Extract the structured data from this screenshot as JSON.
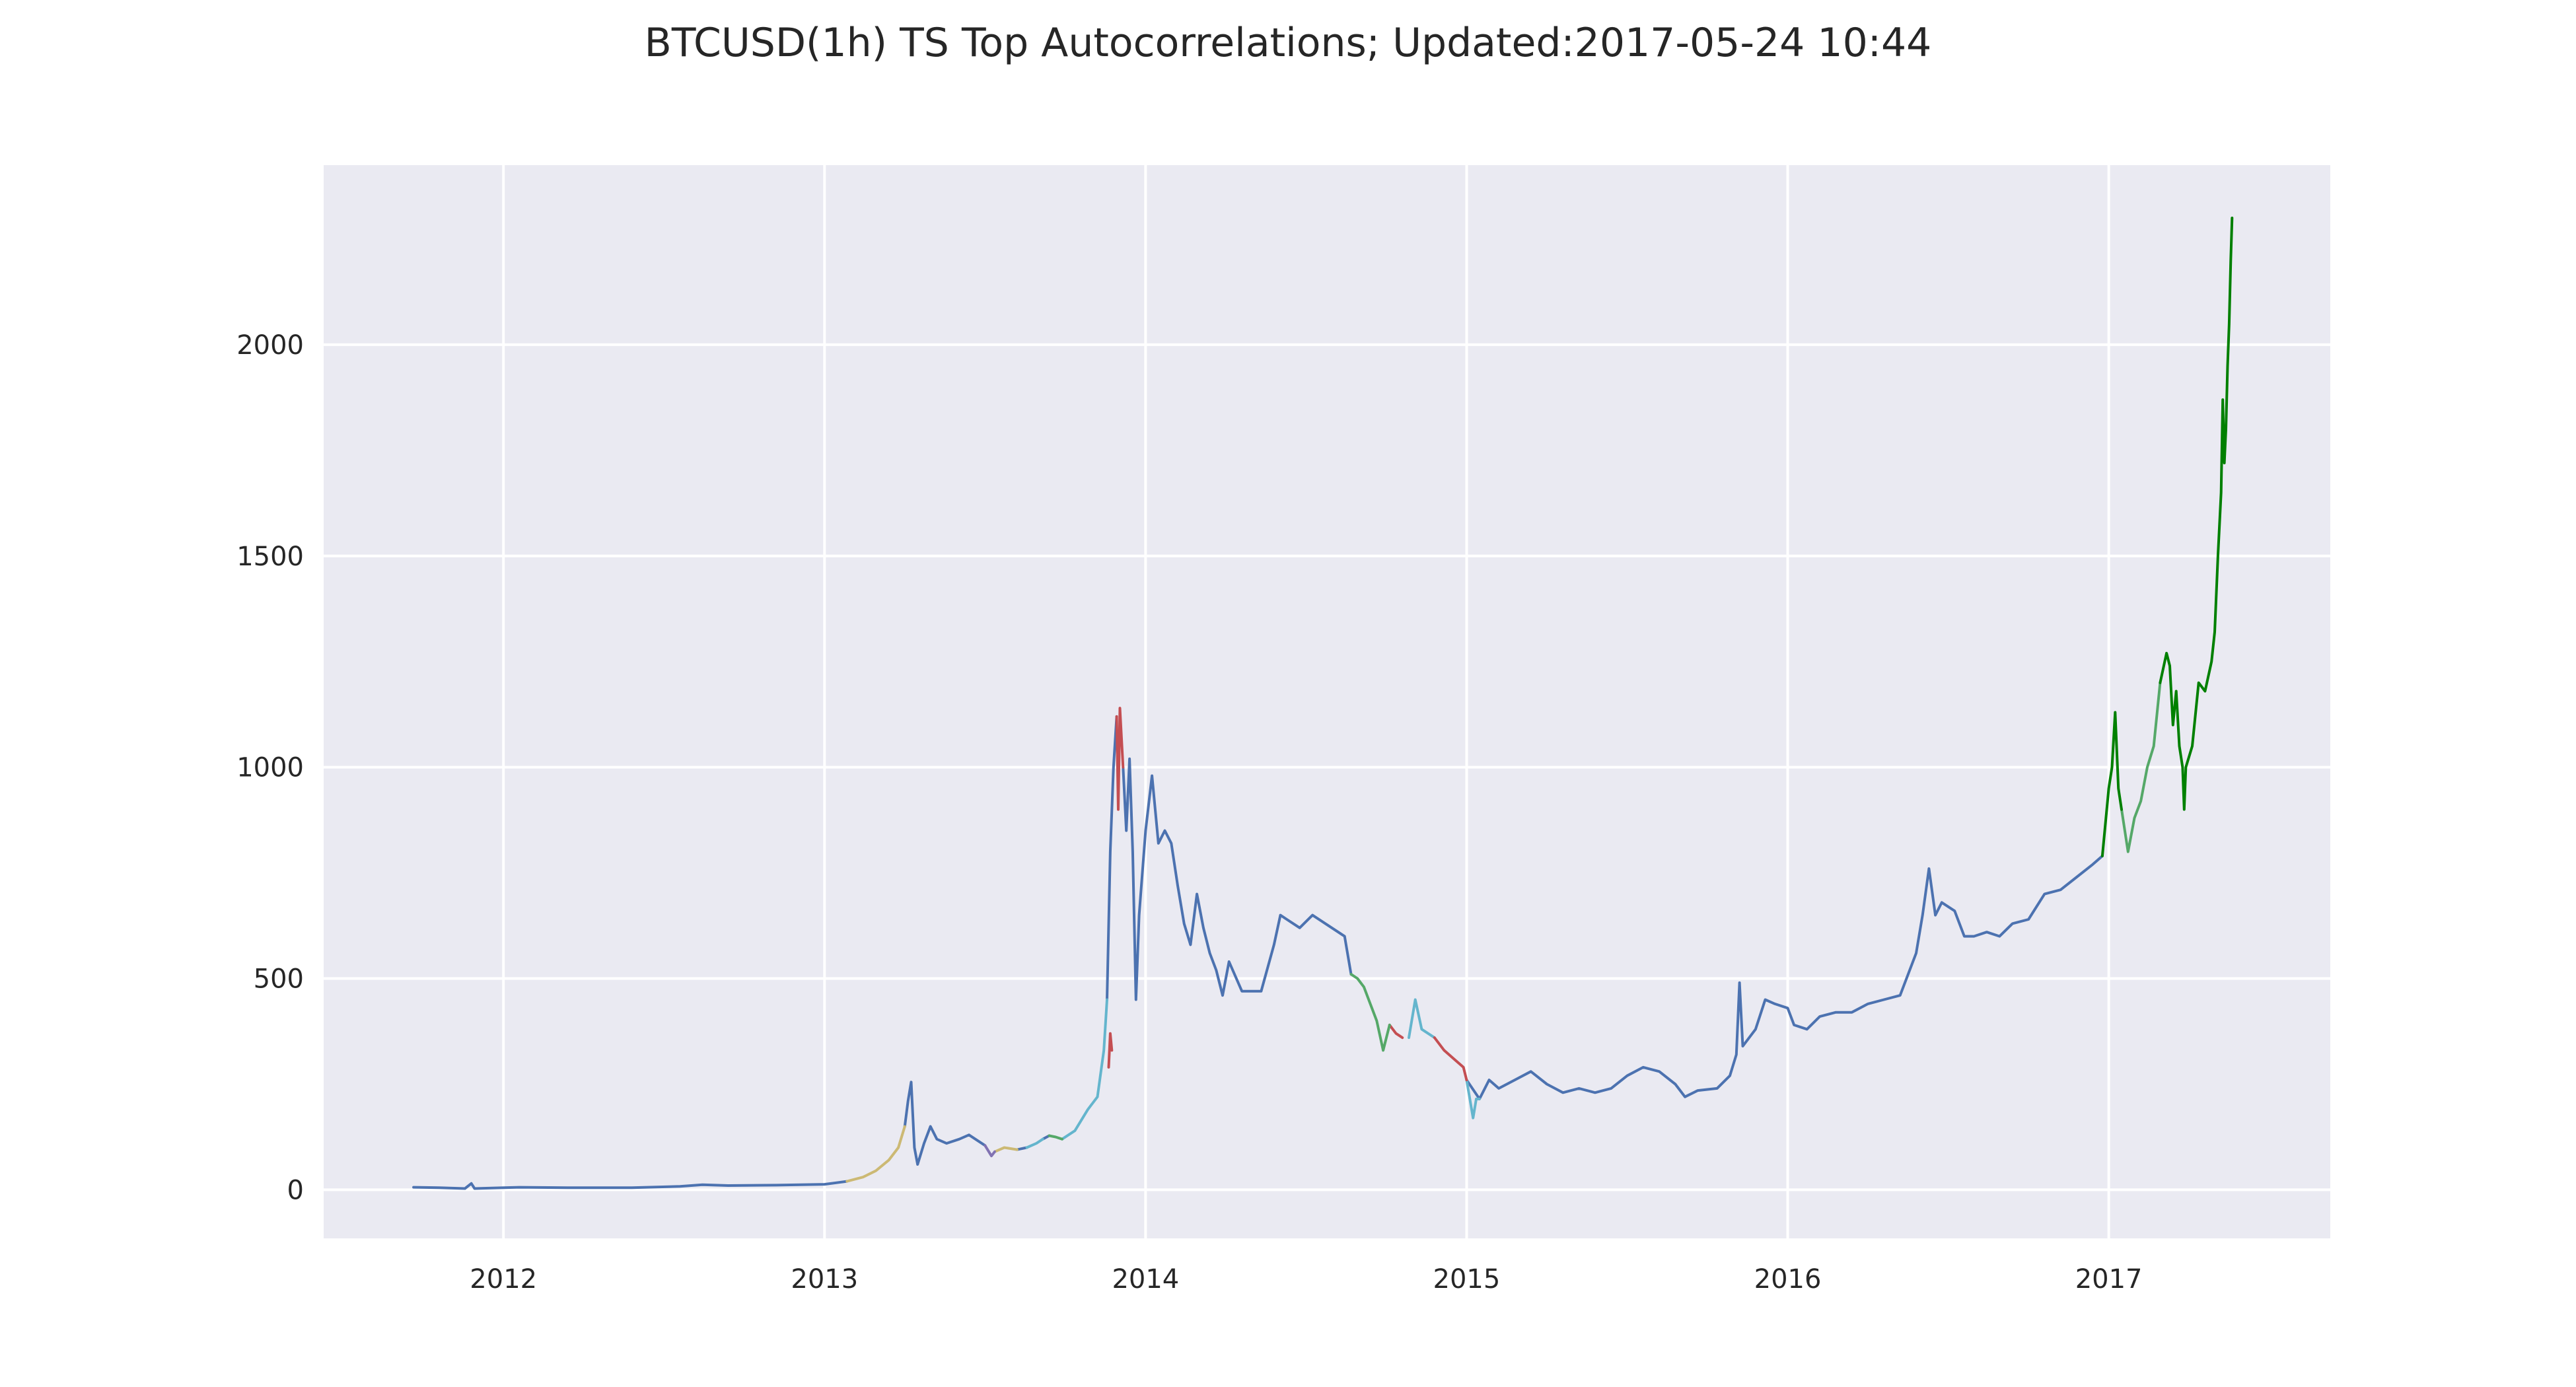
{
  "chart_data": {
    "type": "line",
    "title": "BTCUSD(1h) TS Top Autocorrelations;  Updated:2017-05-24 10:44",
    "xlabel": "",
    "ylabel": "",
    "x_tick_labels": [
      "2012",
      "2013",
      "2014",
      "2015",
      "2016",
      "2017"
    ],
    "x_tick_values": [
      2012,
      2013,
      2014,
      2015,
      2016,
      2017
    ],
    "y_tick_labels": [
      "0",
      "500",
      "1000",
      "1500",
      "2000"
    ],
    "y_tick_values": [
      0,
      500,
      1000,
      1500,
      2000
    ],
    "xlim": [
      2011.44,
      2017.69
    ],
    "ylim": [
      -115,
      2425
    ],
    "grid": true,
    "background": "#eaeaf2",
    "series": [
      {
        "color": "#4c72b0",
        "points": [
          [
            2011.72,
            6
          ],
          [
            2011.8,
            5
          ],
          [
            2011.88,
            3
          ],
          [
            2011.9,
            15
          ],
          [
            2011.91,
            3
          ],
          [
            2012.0,
            5
          ],
          [
            2012.05,
            6
          ],
          [
            2012.2,
            5
          ],
          [
            2012.4,
            5
          ],
          [
            2012.55,
            8
          ],
          [
            2012.62,
            12
          ],
          [
            2012.7,
            10
          ],
          [
            2012.85,
            11
          ],
          [
            2013.0,
            13
          ],
          [
            2013.07,
            20
          ],
          null,
          [
            2013.25,
            150
          ],
          [
            2013.26,
            210
          ],
          [
            2013.27,
            255
          ],
          [
            2013.28,
            100
          ],
          [
            2013.29,
            60
          ],
          [
            2013.31,
            110
          ],
          [
            2013.33,
            150
          ],
          [
            2013.35,
            120
          ],
          [
            2013.38,
            110
          ],
          [
            2013.42,
            120
          ],
          [
            2013.45,
            130
          ],
          [
            2013.48,
            115
          ],
          [
            2013.5,
            105
          ],
          null,
          [
            2013.6,
            95
          ],
          [
            2013.63,
            100
          ],
          null,
          [
            2013.68,
            120
          ],
          [
            2013.7,
            128
          ],
          null,
          [
            2013.88,
            450
          ],
          [
            2013.89,
            800
          ],
          [
            2013.9,
            1000
          ],
          [
            2013.91,
            1120
          ],
          null,
          [
            2013.93,
            1000
          ],
          [
            2013.94,
            850
          ],
          [
            2013.95,
            1020
          ],
          [
            2013.96,
            800
          ],
          [
            2013.97,
            450
          ],
          [
            2013.98,
            650
          ],
          [
            2014.0,
            850
          ],
          [
            2014.02,
            980
          ],
          [
            2014.04,
            820
          ],
          [
            2014.06,
            850
          ],
          [
            2014.08,
            820
          ],
          [
            2014.1,
            720
          ],
          [
            2014.12,
            630
          ],
          [
            2014.14,
            580
          ],
          [
            2014.16,
            700
          ],
          [
            2014.18,
            620
          ],
          [
            2014.2,
            560
          ],
          [
            2014.22,
            520
          ],
          [
            2014.24,
            460
          ],
          [
            2014.26,
            540
          ],
          [
            2014.3,
            470
          ],
          [
            2014.36,
            470
          ],
          [
            2014.4,
            580
          ],
          [
            2014.42,
            650
          ],
          [
            2014.44,
            640
          ],
          [
            2014.48,
            620
          ],
          [
            2014.52,
            650
          ],
          [
            2014.56,
            630
          ],
          [
            2014.62,
            600
          ],
          [
            2014.64,
            510
          ],
          null,
          [
            2015.0,
            260
          ],
          [
            2015.04,
            215
          ],
          [
            2015.07,
            260
          ],
          [
            2015.1,
            240
          ],
          [
            2015.15,
            260
          ],
          [
            2015.2,
            280
          ],
          [
            2015.25,
            250
          ],
          [
            2015.3,
            230
          ],
          [
            2015.35,
            240
          ],
          [
            2015.4,
            230
          ],
          [
            2015.45,
            240
          ],
          [
            2015.5,
            270
          ],
          [
            2015.55,
            290
          ],
          [
            2015.6,
            280
          ],
          [
            2015.65,
            250
          ],
          [
            2015.68,
            220
          ],
          [
            2015.72,
            235
          ],
          [
            2015.78,
            240
          ],
          [
            2015.82,
            270
          ],
          [
            2015.84,
            320
          ],
          [
            2015.85,
            490
          ],
          [
            2015.86,
            340
          ],
          [
            2015.9,
            380
          ],
          [
            2015.93,
            450
          ],
          [
            2015.96,
            440
          ],
          [
            2016.0,
            430
          ],
          [
            2016.02,
            390
          ],
          [
            2016.06,
            380
          ],
          [
            2016.1,
            410
          ],
          [
            2016.15,
            420
          ],
          [
            2016.2,
            420
          ],
          [
            2016.25,
            440
          ],
          [
            2016.3,
            450
          ],
          [
            2016.35,
            460
          ],
          [
            2016.4,
            560
          ],
          [
            2016.42,
            650
          ],
          [
            2016.44,
            760
          ],
          [
            2016.46,
            650
          ],
          [
            2016.48,
            680
          ],
          [
            2016.52,
            660
          ],
          [
            2016.55,
            600
          ],
          [
            2016.58,
            600
          ],
          [
            2016.62,
            610
          ],
          [
            2016.66,
            600
          ],
          [
            2016.7,
            630
          ],
          [
            2016.75,
            640
          ],
          [
            2016.8,
            700
          ],
          [
            2016.85,
            710
          ],
          [
            2016.9,
            740
          ],
          [
            2016.95,
            770
          ],
          [
            2016.98,
            790
          ]
        ]
      },
      {
        "color": "#ccb974",
        "points": [
          [
            2013.07,
            20
          ],
          [
            2013.12,
            30
          ],
          [
            2013.16,
            45
          ],
          [
            2013.2,
            70
          ],
          [
            2013.23,
            100
          ],
          [
            2013.25,
            150
          ],
          null,
          [
            2013.53,
            90
          ],
          [
            2013.56,
            100
          ],
          [
            2013.6,
            95
          ]
        ]
      },
      {
        "color": "#8172b2",
        "points": [
          [
            2013.5,
            105
          ],
          [
            2013.52,
            80
          ],
          [
            2013.53,
            90
          ]
        ]
      },
      {
        "color": "#64b5cd",
        "points": [
          [
            2013.63,
            100
          ],
          [
            2013.66,
            110
          ],
          [
            2013.68,
            120
          ],
          null,
          [
            2013.74,
            120
          ],
          [
            2013.78,
            140
          ],
          [
            2013.82,
            190
          ],
          [
            2013.85,
            220
          ],
          [
            2013.87,
            330
          ],
          [
            2013.88,
            450
          ],
          null,
          [
            2014.82,
            360
          ],
          [
            2014.84,
            450
          ],
          [
            2014.86,
            380
          ],
          [
            2014.88,
            370
          ],
          [
            2014.9,
            360
          ],
          null,
          [
            2015.0,
            260
          ],
          [
            2015.02,
            170
          ],
          [
            2015.03,
            215
          ],
          [
            2015.04,
            215
          ]
        ]
      },
      {
        "color": "#c44e52",
        "points": [
          [
            2013.885,
            290
          ],
          [
            2013.89,
            370
          ],
          [
            2013.895,
            330
          ],
          null,
          [
            2013.91,
            1120
          ],
          [
            2013.915,
            900
          ],
          [
            2013.92,
            1140
          ],
          [
            2013.93,
            1000
          ],
          null,
          [
            2014.76,
            390
          ],
          [
            2014.78,
            370
          ],
          [
            2014.8,
            360
          ],
          null,
          [
            2014.9,
            360
          ],
          [
            2014.93,
            330
          ],
          [
            2014.96,
            310
          ],
          [
            2014.99,
            290
          ],
          [
            2015.0,
            260
          ]
        ]
      },
      {
        "color": "#55a868",
        "points": [
          [
            2013.7,
            128
          ],
          [
            2013.72,
            125
          ],
          [
            2013.74,
            120
          ],
          null,
          [
            2014.64,
            510
          ],
          [
            2014.66,
            500
          ],
          [
            2014.68,
            480
          ],
          [
            2014.7,
            440
          ],
          [
            2014.72,
            400
          ],
          [
            2014.74,
            330
          ],
          [
            2014.76,
            390
          ],
          null,
          [
            2017.04,
            900
          ],
          [
            2017.06,
            800
          ],
          [
            2017.08,
            880
          ],
          [
            2017.1,
            920
          ],
          [
            2017.12,
            1000
          ],
          [
            2017.14,
            1050
          ],
          [
            2017.16,
            1200
          ]
        ]
      },
      {
        "color": "#008000",
        "points": [
          [
            2016.98,
            790
          ],
          [
            2017.0,
            950
          ],
          [
            2017.01,
            1000
          ],
          [
            2017.02,
            1130
          ],
          [
            2017.03,
            950
          ],
          [
            2017.04,
            900
          ],
          null,
          [
            2017.16,
            1200
          ],
          [
            2017.18,
            1270
          ],
          [
            2017.19,
            1240
          ],
          [
            2017.2,
            1100
          ],
          [
            2017.21,
            1180
          ],
          [
            2017.22,
            1050
          ],
          [
            2017.23,
            1000
          ],
          [
            2017.235,
            900
          ],
          [
            2017.24,
            1000
          ],
          [
            2017.26,
            1050
          ],
          [
            2017.28,
            1200
          ],
          [
            2017.3,
            1180
          ],
          [
            2017.32,
            1250
          ],
          [
            2017.33,
            1320
          ],
          [
            2017.34,
            1500
          ],
          [
            2017.35,
            1650
          ],
          [
            2017.355,
            1870
          ],
          [
            2017.36,
            1720
          ],
          [
            2017.365,
            1800
          ],
          [
            2017.37,
            1950
          ],
          [
            2017.375,
            2050
          ],
          [
            2017.38,
            2200
          ],
          [
            2017.384,
            2300
          ]
        ]
      }
    ]
  }
}
